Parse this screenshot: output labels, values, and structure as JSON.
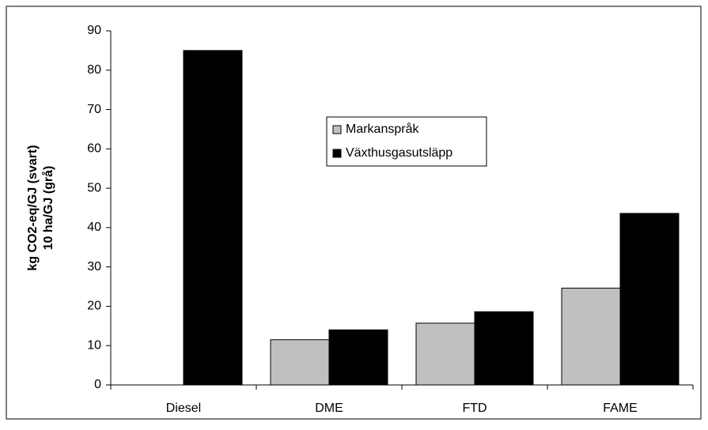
{
  "chart_data": {
    "type": "bar",
    "ylabel": [
      "kg CO2-eq/GJ (svart)",
      "10 ha/GJ (grå)"
    ],
    "categories": [
      "Diesel",
      "DME",
      "FTD",
      "FAME"
    ],
    "series": [
      {
        "name": "Markanspråk",
        "color": "#c0c0c0",
        "values": [
          0,
          11.5,
          15.7,
          24.6
        ]
      },
      {
        "name": "Växthusgasutsläpp",
        "color": "#000000",
        "values": [
          85,
          14,
          18.6,
          43.6
        ]
      }
    ],
    "ylim": [
      0,
      90
    ],
    "yticks": [
      0,
      10,
      20,
      30,
      40,
      50,
      60,
      70,
      80,
      90
    ],
    "grid": false
  }
}
